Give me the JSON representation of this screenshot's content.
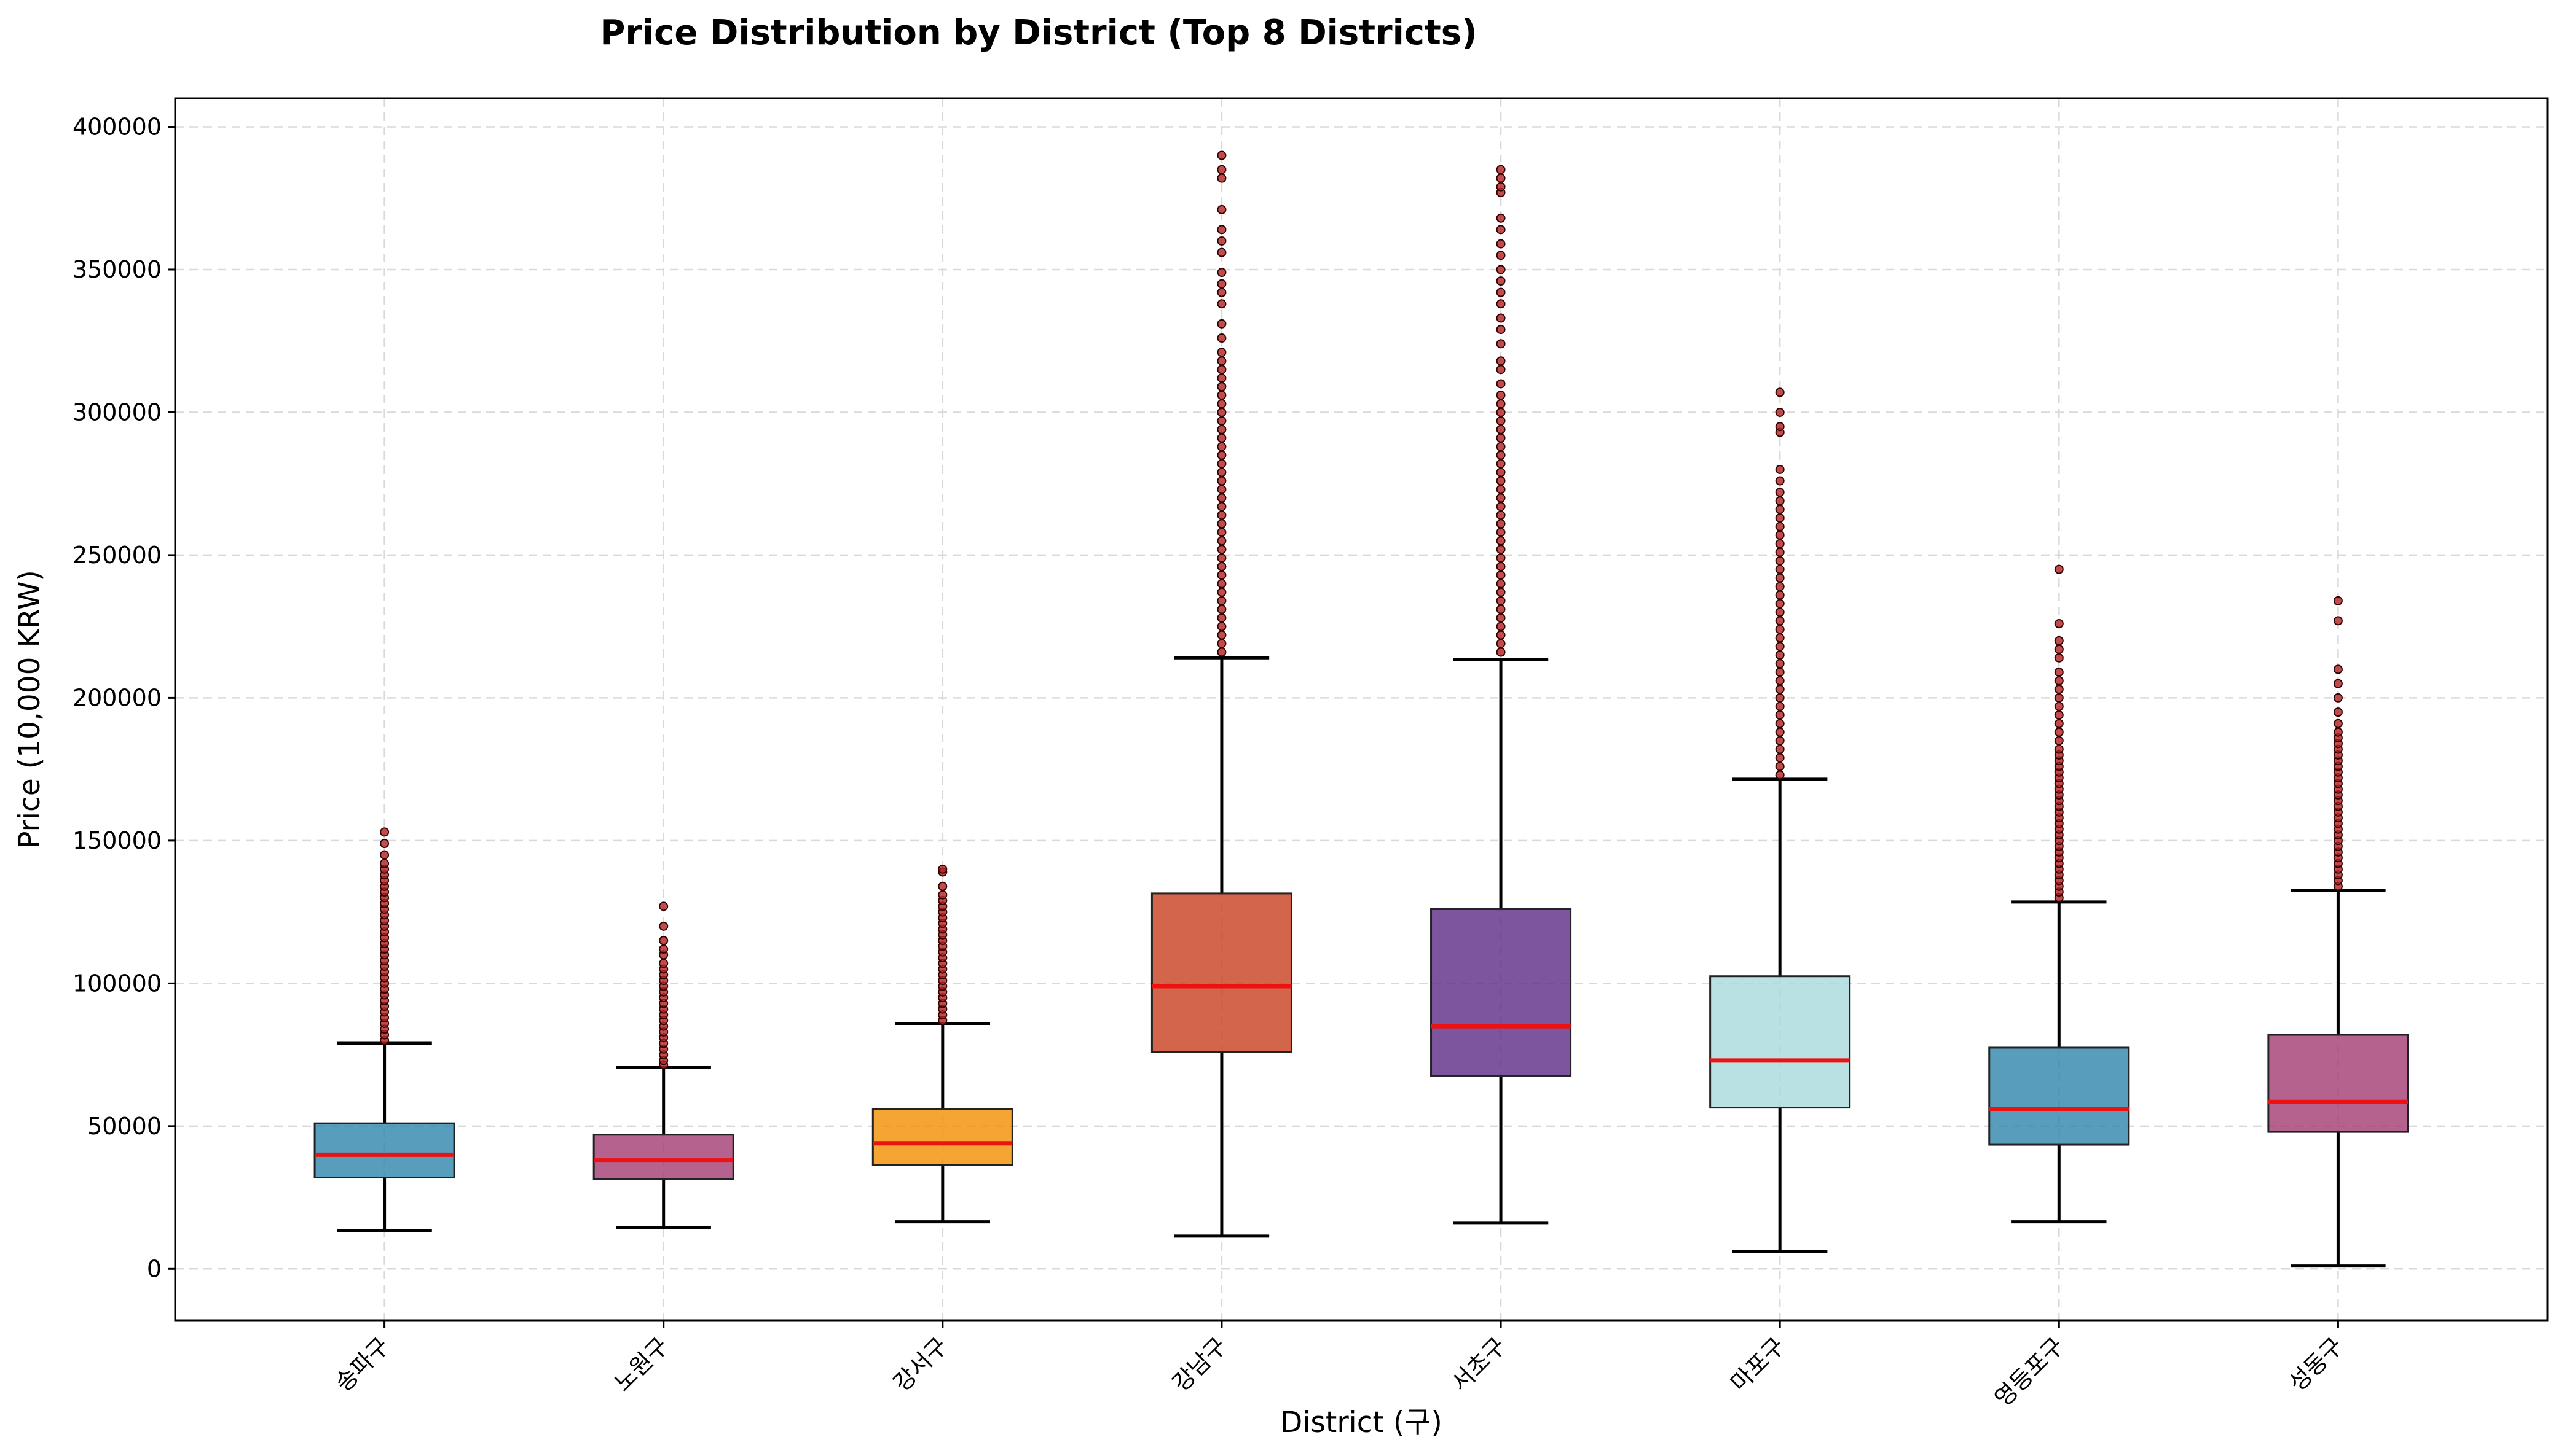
{
  "chart_data": {
    "type": "boxplot",
    "title": "Price Distribution by District (Top 8 Districts)",
    "xlabel": "District (구)",
    "ylabel": "Price (10,000 KRW)",
    "ylim": [
      -18000,
      410000
    ],
    "yticks": [
      0,
      50000,
      100000,
      150000,
      200000,
      250000,
      300000,
      350000,
      400000
    ],
    "grid": true,
    "median_color": "#ee1111",
    "outlier_color": "#b22222",
    "categories": [
      "송파구",
      "노원구",
      "강서구",
      "강남구",
      "서초구",
      "마포구",
      "영등포구",
      "성동구"
    ],
    "boxes": [
      {
        "category": "송파구",
        "color": "#2e86ab",
        "whisker_low": 13500,
        "q1": 32000,
        "median": 40000,
        "q3": 51000,
        "whisker_high": 79000,
        "outliers": [
          80000,
          82000,
          84000,
          86000,
          88000,
          90000,
          92000,
          94000,
          96000,
          98000,
          100000,
          102000,
          104000,
          106000,
          108000,
          110000,
          112000,
          114000,
          116000,
          118000,
          120000,
          122000,
          124000,
          126000,
          128000,
          130000,
          132000,
          134000,
          136000,
          138000,
          140000,
          142000,
          145000,
          149000,
          153000
        ]
      },
      {
        "category": "노원구",
        "color": "#a23b72",
        "whisker_low": 14500,
        "q1": 31500,
        "median": 38000,
        "q3": 47000,
        "whisker_high": 70500,
        "outliers": [
          71500,
          73000,
          75000,
          77000,
          79000,
          81000,
          83000,
          85000,
          87000,
          89000,
          91000,
          93000,
          95000,
          97000,
          99000,
          101000,
          103000,
          105000,
          107000,
          110000,
          112000,
          115000,
          120000,
          127000
        ]
      },
      {
        "category": "강서구",
        "color": "#f18f01",
        "whisker_low": 16500,
        "q1": 36500,
        "median": 44000,
        "q3": 56000,
        "whisker_high": 86000,
        "outliers": [
          87000,
          89000,
          91000,
          93000,
          95000,
          97000,
          99000,
          101000,
          103000,
          105000,
          107000,
          109000,
          111000,
          113000,
          115000,
          117000,
          119000,
          121000,
          123000,
          125000,
          127000,
          129000,
          131000,
          134000,
          139000,
          140000
        ]
      },
      {
        "category": "강남구",
        "color": "#c73e1d",
        "whisker_low": 11500,
        "q1": 76000,
        "median": 99000,
        "q3": 131500,
        "whisker_high": 214000,
        "outliers": [
          216000,
          219000,
          222000,
          225000,
          228000,
          231000,
          234000,
          237000,
          240000,
          243000,
          246000,
          249000,
          252000,
          255000,
          258000,
          261000,
          264000,
          267000,
          270000,
          273000,
          276000,
          279000,
          282000,
          285000,
          288000,
          291000,
          294000,
          297000,
          300000,
          303000,
          306000,
          309000,
          312000,
          315000,
          318000,
          321000,
          326000,
          331000,
          338000,
          342000,
          345000,
          349000,
          356000,
          360000,
          364000,
          371000,
          382000,
          385000,
          390000
        ]
      },
      {
        "category": "서초구",
        "color": "#5b2a86",
        "whisker_low": 16000,
        "q1": 67500,
        "median": 85000,
        "q3": 126000,
        "whisker_high": 213500,
        "outliers": [
          216000,
          219000,
          222000,
          225000,
          228000,
          231000,
          234000,
          237000,
          240000,
          243000,
          246000,
          249000,
          252000,
          255000,
          258000,
          261000,
          264000,
          267000,
          270000,
          273000,
          276000,
          279000,
          282000,
          285000,
          288000,
          291000,
          294000,
          297000,
          300000,
          303000,
          306000,
          310000,
          315000,
          318000,
          324000,
          329000,
          333000,
          338000,
          342000,
          346000,
          350000,
          355000,
          359000,
          364000,
          368000,
          377000,
          379000,
          382000,
          385000
        ]
      },
      {
        "category": "마포구",
        "color": "#a8dadc",
        "whisker_low": 6000,
        "q1": 56500,
        "median": 73000,
        "q3": 102500,
        "whisker_high": 171500,
        "outliers": [
          173000,
          176000,
          179000,
          182000,
          185000,
          188000,
          191000,
          194000,
          197000,
          200000,
          203000,
          206000,
          209000,
          212000,
          215000,
          218000,
          221000,
          224000,
          227000,
          230000,
          233000,
          236000,
          239000,
          242000,
          245000,
          248000,
          251000,
          254000,
          257000,
          260000,
          263000,
          266000,
          269000,
          272000,
          276000,
          280000,
          293000,
          295000,
          300000,
          307000
        ]
      },
      {
        "category": "영등포구",
        "color": "#2e86ab",
        "whisker_low": 16500,
        "q1": 43500,
        "median": 56000,
        "q3": 77500,
        "whisker_high": 128500,
        "outliers": [
          130000,
          132000,
          134000,
          136000,
          138000,
          140000,
          142000,
          144000,
          146000,
          148000,
          150000,
          152000,
          154000,
          156000,
          158000,
          160000,
          162000,
          164000,
          166000,
          168000,
          170000,
          172000,
          174000,
          176000,
          178000,
          180000,
          182000,
          185000,
          188000,
          191000,
          194000,
          197000,
          200000,
          203000,
          206000,
          209000,
          214000,
          217000,
          220000,
          226000,
          245000
        ]
      },
      {
        "category": "성동구",
        "color": "#a23b72",
        "whisker_low": 1000,
        "q1": 48000,
        "median": 58500,
        "q3": 82000,
        "whisker_high": 132500,
        "outliers": [
          134000,
          136000,
          138000,
          140000,
          142000,
          144000,
          146000,
          148000,
          150000,
          152000,
          154000,
          156000,
          158000,
          160000,
          162000,
          164000,
          166000,
          168000,
          170000,
          172000,
          174000,
          176000,
          178000,
          180000,
          182000,
          184000,
          186000,
          188000,
          191000,
          195000,
          200000,
          205000,
          210000,
          227000,
          234000
        ]
      }
    ]
  }
}
